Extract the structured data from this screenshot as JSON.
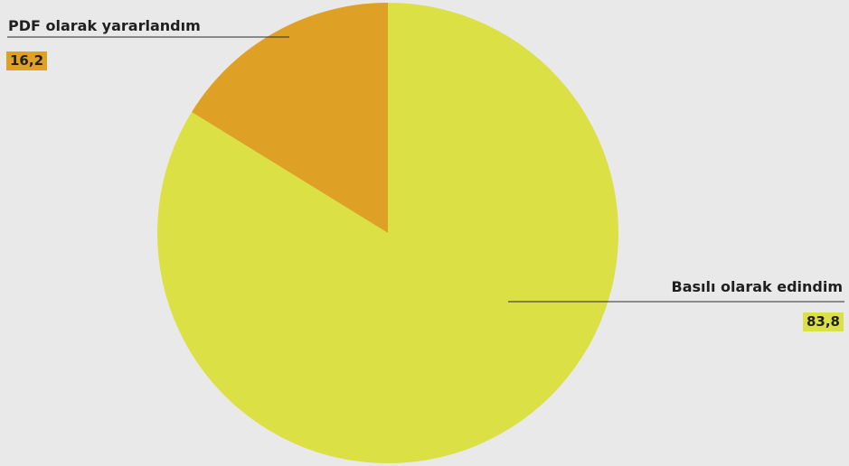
{
  "chart_data": {
    "type": "pie",
    "slices": [
      {
        "label": "PDF olarak yararlandım",
        "value": 16.2,
        "value_label": "16,2",
        "color": "#dea125"
      },
      {
        "label": "Basılı olarak edindim",
        "value": 83.8,
        "value_label": "83,8",
        "color": "#dbe045"
      }
    ]
  },
  "background": "#e8e9e8"
}
